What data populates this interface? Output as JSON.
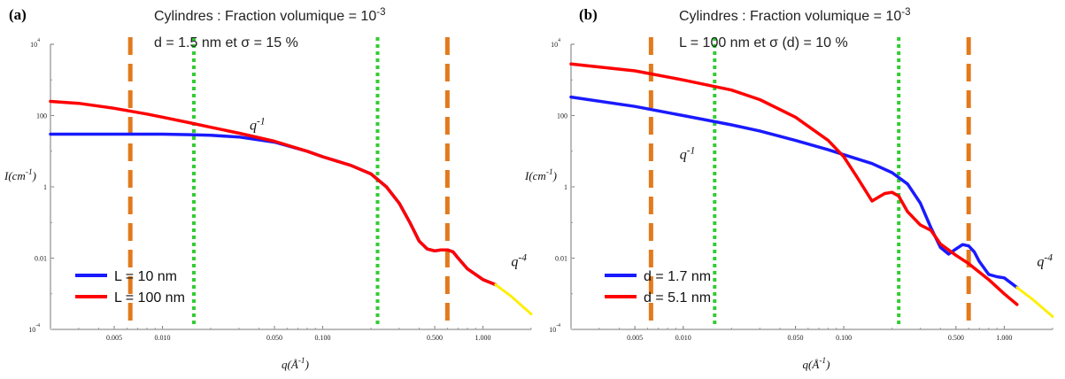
{
  "chart_data": [
    {
      "panel_label": "(a)",
      "type": "line",
      "title_line1": "Cylindres : Fraction volumique = 10",
      "title_line1_sup": "-3",
      "title_line2": "d = 1.5 nm et σ = 15 %",
      "xlabel": "q(Å",
      "xlabel_sup": "-1",
      "xlabel_close": ")",
      "ylabel": "I(cm",
      "ylabel_sup": "-1",
      "ylabel_close": ")",
      "xscale": "log",
      "yscale": "log",
      "xlim": [
        0.002,
        2
      ],
      "ylim": [
        0.0001,
        10000
      ],
      "x_ticks": [
        {
          "value": 0.005,
          "label": "0.005"
        },
        {
          "value": 0.01,
          "label": "0.010"
        },
        {
          "value": 0.05,
          "label": "0.050"
        },
        {
          "value": 0.1,
          "label": "0.100"
        },
        {
          "value": 0.5,
          "label": "0.500"
        },
        {
          "value": 1,
          "label": "1.000"
        }
      ],
      "y_ticks": [
        {
          "value": 0.0001,
          "base": "10",
          "sup": "-4"
        },
        {
          "value": 0.01,
          "label": "0.01"
        },
        {
          "value": 1,
          "label": "1"
        },
        {
          "value": 100,
          "label": "100"
        },
        {
          "value": 10000,
          "base": "10",
          "sup": "4"
        }
      ],
      "series": [
        {
          "name": "L = 10 nm",
          "color": "#1a1aff",
          "x": [
            0.002,
            0.005,
            0.01,
            0.015,
            0.02,
            0.03,
            0.05,
            0.08,
            0.1,
            0.15,
            0.2,
            0.25,
            0.3,
            0.35,
            0.4,
            0.45,
            0.5,
            0.55,
            0.6,
            0.65,
            0.7,
            0.8,
            1.0,
            1.2
          ],
          "y": [
            30,
            30,
            30,
            29,
            28,
            25,
            18,
            10,
            7,
            4,
            2.3,
            1.0,
            0.35,
            0.1,
            0.03,
            0.018,
            0.016,
            0.017,
            0.017,
            0.015,
            0.01,
            0.005,
            0.0025,
            0.0018
          ]
        },
        {
          "name": "L = 100 nm",
          "color": "#ff0000",
          "x": [
            0.002,
            0.003,
            0.005,
            0.008,
            0.01,
            0.015,
            0.02,
            0.03,
            0.05,
            0.08,
            0.1,
            0.15,
            0.2,
            0.25,
            0.3,
            0.35,
            0.4,
            0.45,
            0.5,
            0.55,
            0.6,
            0.65,
            0.7,
            0.8,
            1.0,
            1.2
          ],
          "y": [
            250,
            220,
            160,
            110,
            90,
            62,
            47,
            32,
            19,
            10,
            7,
            4,
            2.3,
            1.0,
            0.35,
            0.1,
            0.03,
            0.018,
            0.016,
            0.017,
            0.017,
            0.015,
            0.01,
            0.005,
            0.0025,
            0.0018
          ]
        },
        {
          "name": "",
          "color": "#ffee00",
          "x": [
            1.2,
            1.5,
            2.0
          ],
          "y": [
            0.0018,
            0.00085,
            0.00027
          ]
        }
      ],
      "vlines": [
        {
          "x": 0.0063,
          "color": "#e27a1d",
          "style": "dashed"
        },
        {
          "x": 0.6,
          "color": "#e27a1d",
          "style": "dashed"
        },
        {
          "x": 0.0157,
          "color": "#33cc33",
          "style": "dotted"
        },
        {
          "x": 0.22,
          "color": "#33cc33",
          "style": "dotted"
        }
      ],
      "annotations": [
        {
          "text": "q",
          "sup": "-1",
          "x": 0.035,
          "y": 40
        },
        {
          "text": "q",
          "sup": "-4",
          "x": 1.5,
          "y": 0.006
        }
      ],
      "legend_position": "bottom-left"
    },
    {
      "panel_label": "(b)",
      "type": "line",
      "title_line1": "Cylindres : Fraction volumique = 10",
      "title_line1_sup": "-3",
      "title_line2": "L = 100 nm et σ (d) = 10 %",
      "xlabel": "q(Å",
      "xlabel_sup": "-1",
      "xlabel_close": ")",
      "ylabel": "I(cm",
      "ylabel_sup": "-1",
      "ylabel_close": ")",
      "xscale": "log",
      "yscale": "log",
      "xlim": [
        0.002,
        2
      ],
      "ylim": [
        0.0001,
        10000
      ],
      "x_ticks": [
        {
          "value": 0.005,
          "label": "0.005"
        },
        {
          "value": 0.01,
          "label": "0.010"
        },
        {
          "value": 0.05,
          "label": "0.050"
        },
        {
          "value": 0.1,
          "label": "0.100"
        },
        {
          "value": 0.5,
          "label": "0.500"
        },
        {
          "value": 1,
          "label": "1.000"
        }
      ],
      "y_ticks": [
        {
          "value": 0.0001,
          "base": "10",
          "sup": "-4"
        },
        {
          "value": 0.01,
          "label": "0.01"
        },
        {
          "value": 1,
          "label": "1"
        },
        {
          "value": 100,
          "label": "100"
        },
        {
          "value": 10000,
          "base": "10",
          "sup": "4"
        }
      ],
      "series": [
        {
          "name": "d = 1.7 nm",
          "color": "#1a1aff",
          "x": [
            0.002,
            0.005,
            0.01,
            0.02,
            0.03,
            0.05,
            0.08,
            0.1,
            0.15,
            0.2,
            0.25,
            0.3,
            0.35,
            0.4,
            0.45,
            0.5,
            0.55,
            0.6,
            0.65,
            0.7,
            0.8,
            0.9,
            1.0,
            1.2
          ],
          "y": [
            330,
            180,
            100,
            55,
            37,
            20,
            11,
            8,
            4.5,
            2.5,
            1.2,
            0.35,
            0.07,
            0.02,
            0.013,
            0.018,
            0.024,
            0.022,
            0.015,
            0.008,
            0.0035,
            0.003,
            0.0028,
            0.0015
          ]
        },
        {
          "name": "d = 5.1 nm",
          "color": "#ff0000",
          "x": [
            0.002,
            0.005,
            0.01,
            0.02,
            0.03,
            0.05,
            0.08,
            0.1,
            0.12,
            0.15,
            0.18,
            0.2,
            0.22,
            0.25,
            0.3,
            0.35,
            0.4,
            0.5,
            0.6,
            0.8,
            1.0,
            1.2
          ],
          "y": [
            2800,
            1800,
            1000,
            520,
            280,
            90,
            20,
            7,
            2,
            0.4,
            0.65,
            0.7,
            0.55,
            0.2,
            0.085,
            0.06,
            0.025,
            0.012,
            0.007,
            0.0025,
            0.001,
            0.0005
          ]
        },
        {
          "name": "",
          "color": "#ffee00",
          "x": [
            1.2,
            1.5,
            2.0
          ],
          "y": [
            0.0015,
            0.0007,
            0.00023
          ]
        }
      ],
      "vlines": [
        {
          "x": 0.0063,
          "color": "#e27a1d",
          "style": "dashed"
        },
        {
          "x": 0.6,
          "color": "#e27a1d",
          "style": "dashed"
        },
        {
          "x": 0.0157,
          "color": "#33cc33",
          "style": "dotted"
        },
        {
          "x": 0.22,
          "color": "#33cc33",
          "style": "dotted"
        }
      ],
      "annotations": [
        {
          "text": "q",
          "sup": "-1",
          "x": 0.0095,
          "y": 6
        },
        {
          "text": "q",
          "sup": "-4",
          "x": 1.6,
          "y": 0.006
        }
      ],
      "legend_position": "bottom-left"
    }
  ]
}
